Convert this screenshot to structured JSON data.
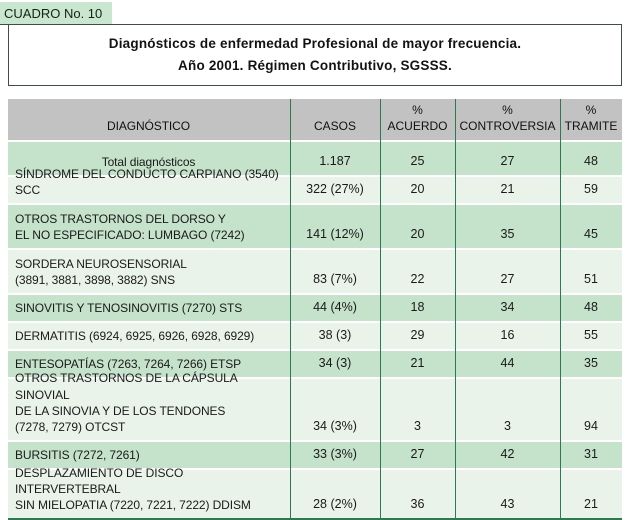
{
  "page": {
    "label": "CUADRO No. 10",
    "title_line1": "Diagnósticos de enfermedad Profesional de mayor frecuencia.",
    "title_line2": "Año 2001. Régimen Contributivo, SGSSS."
  },
  "colors": {
    "label_highlight": "#c9e6ce",
    "header_row_bg": "#c2c2c2",
    "row_green": "#c5e2ca",
    "row_light": "#e9f3ea",
    "grid_line_green": "#2e7a50",
    "box_border": "#3f4f45"
  },
  "table": {
    "columns": [
      "DIAGNÓSTICO",
      "CASOS",
      "%\nACUERDO",
      "%\nCONTROVERSIA",
      "%\nTRAMITE"
    ],
    "rows": [
      {
        "diagnostico": "Total diagnósticos",
        "casos": "1.187",
        "acuerdo": "25",
        "controversia": "27",
        "tramite": "48"
      },
      {
        "diagnostico": "SÍNDROME DEL CONDUCTO CARPIANO (3540) SCC",
        "casos": "322 (27%)",
        "acuerdo": "20",
        "controversia": "21",
        "tramite": "59"
      },
      {
        "diagnostico": "OTROS TRASTORNOS DEL DORSO Y\nEL NO ESPECIFICADO: LUMBAGO (7242)",
        "casos": "141 (12%)",
        "acuerdo": "20",
        "controversia": "35",
        "tramite": "45"
      },
      {
        "diagnostico": "SORDERA NEUROSENSORIAL\n(3891, 3881, 3898, 3882) SNS",
        "casos": "83 (7%)",
        "acuerdo": "22",
        "controversia": "27",
        "tramite": "51"
      },
      {
        "diagnostico": "SINOVITIS Y TENOSINOVITIS (7270) STS",
        "casos": "44 (4%)",
        "acuerdo": "18",
        "controversia": "34",
        "tramite": "48"
      },
      {
        "diagnostico": "DERMATITIS (6924, 6925, 6926, 6928, 6929)",
        "casos": "38 (3)",
        "acuerdo": "29",
        "controversia": "16",
        "tramite": "55"
      },
      {
        "diagnostico": "ENTESOPATÍAS (7263, 7264, 7266) ETSP",
        "casos": "34 (3)",
        "acuerdo": "21",
        "controversia": "44",
        "tramite": "35"
      },
      {
        "diagnostico": "OTROS TRASTORNOS DE LA CÁPSULA SINOVIAL\nDE LA SINOVIA Y DE LOS TENDONES\n(7278, 7279) OTCST",
        "casos": "34 (3%)",
        "acuerdo": "3",
        "controversia": "3",
        "tramite": "94"
      },
      {
        "diagnostico": "BURSITIS (7272, 7261)",
        "casos": "33 (3%)",
        "acuerdo": "27",
        "controversia": "42",
        "tramite": "31"
      },
      {
        "diagnostico": "DESPLAZAMIENTO DE DISCO INTERVERTEBRAL\nSIN MIELOPATIA (7220, 7221, 7222) DDISM",
        "casos": "28 (2%)",
        "acuerdo": "36",
        "controversia": "43",
        "tramite": "21"
      }
    ]
  }
}
